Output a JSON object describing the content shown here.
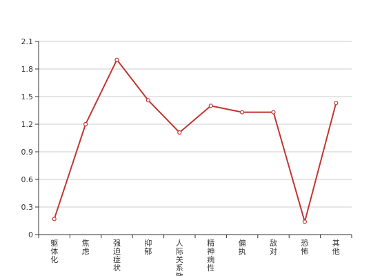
{
  "chart_data": {
    "type": "line",
    "categories": [
      "躯体化",
      "焦虑",
      "强迫症状",
      "抑郁",
      "人际关系敏感",
      "精神病性",
      "偏执",
      "敌对",
      "恐怖",
      "其他"
    ],
    "series": [
      {
        "values": [
          0.17,
          1.2,
          1.9,
          1.46,
          1.11,
          1.4,
          1.33,
          1.33,
          0.14,
          1.43
        ]
      }
    ],
    "ylim": [
      0,
      2.1
    ],
    "yticks": [
      "0",
      "0.3",
      "0.6",
      "0.9",
      "1.2",
      "1.5",
      "1.8",
      "2.1"
    ],
    "grid": true,
    "line_color": "#c23531",
    "grid_color": "#cccccc",
    "axis_color": "#333333"
  }
}
